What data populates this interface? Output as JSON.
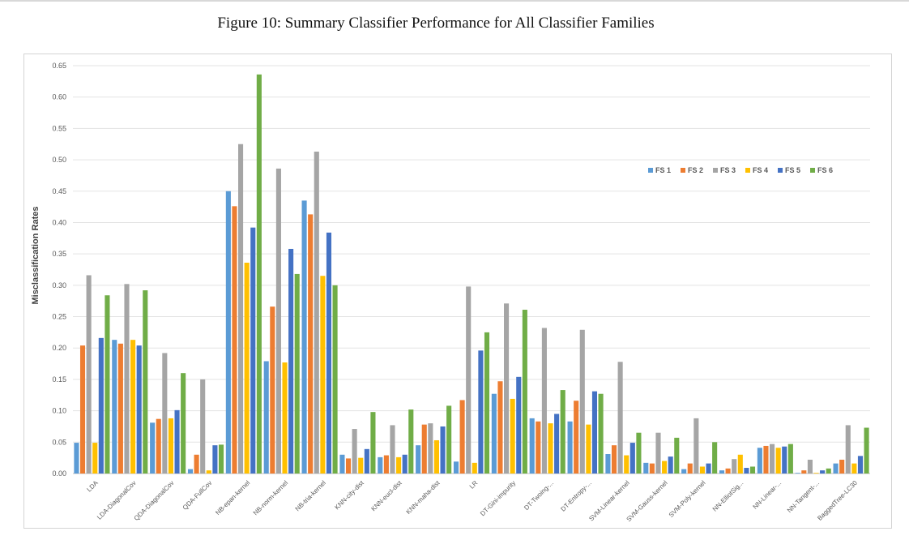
{
  "caption": "Figure 10: Summary Classifier Performance for All Classifier Families",
  "chart_data": {
    "type": "bar",
    "title": "",
    "xlabel": "",
    "ylabel": "Misclassification Rates",
    "ylim": [
      0,
      0.65
    ],
    "yticks": [
      "0.00",
      "0.05",
      "0.10",
      "0.15",
      "0.20",
      "0.25",
      "0.30",
      "0.35",
      "0.40",
      "0.45",
      "0.50",
      "0.55",
      "0.60",
      "0.65"
    ],
    "grid": true,
    "legend_position": "right",
    "categories": [
      "LDA",
      "LDA-DiagonalCov",
      "QDA-DiagonalCov",
      "QDA-FullCov",
      "NB-epan-kernel",
      "NB-norm-kernel",
      "NB-tria-kernel",
      "KNN-city-dist",
      "KNN-eucl-dist",
      "KNN-maha-dist",
      "LR",
      "DT-Gini-impurity",
      "DT-Twoing-...",
      "DT-Entropy-...",
      "SVM-Linear-kernel",
      "SVM-Gauss-kernel",
      "SVM-Poly-kernel",
      "NN-ElliotSig...",
      "NN-Linear-...",
      "NN-Tangent-...",
      "BaggedTree-LC30"
    ],
    "series": [
      {
        "name": "FS 1",
        "color": "#5b9bd5",
        "values": [
          0.049,
          0.213,
          0.081,
          0.007,
          0.45,
          0.179,
          0.435,
          0.03,
          0.026,
          0.045,
          0.019,
          0.127,
          0.088,
          0.083,
          0.031,
          0.017,
          0.007,
          0.005,
          0.041,
          0.001,
          0.016
        ]
      },
      {
        "name": "FS 2",
        "color": "#ed7d31",
        "values": [
          0.204,
          0.207,
          0.087,
          0.03,
          0.426,
          0.266,
          0.413,
          0.024,
          0.029,
          0.078,
          0.117,
          0.147,
          0.083,
          0.116,
          0.045,
          0.016,
          0.016,
          0.008,
          0.044,
          0.005,
          0.022
        ]
      },
      {
        "name": "FS 3",
        "color": "#a5a5a5",
        "values": [
          0.316,
          0.302,
          0.192,
          0.15,
          0.525,
          0.486,
          0.513,
          0.071,
          0.077,
          0.08,
          0.298,
          0.271,
          0.232,
          0.229,
          0.178,
          0.065,
          0.088,
          0.023,
          0.047,
          0.022,
          0.077
        ]
      },
      {
        "name": "FS 4",
        "color": "#ffc000",
        "values": [
          0.049,
          0.213,
          0.088,
          0.005,
          0.336,
          0.177,
          0.315,
          0.025,
          0.026,
          0.053,
          0.017,
          0.119,
          0.08,
          0.078,
          0.029,
          0.02,
          0.011,
          0.03,
          0.041,
          0.001,
          0.016
        ]
      },
      {
        "name": "FS 5",
        "color": "#4472c4",
        "values": [
          0.216,
          0.204,
          0.101,
          0.045,
          0.392,
          0.358,
          0.384,
          0.039,
          0.03,
          0.075,
          0.196,
          0.154,
          0.095,
          0.131,
          0.049,
          0.027,
          0.016,
          0.009,
          0.043,
          0.005,
          0.028
        ]
      },
      {
        "name": "FS 6",
        "color": "#70ad47",
        "values": [
          0.284,
          0.292,
          0.16,
          0.046,
          0.636,
          0.318,
          0.3,
          0.098,
          0.102,
          0.108,
          0.225,
          0.261,
          0.133,
          0.127,
          0.065,
          0.057,
          0.05,
          0.011,
          0.047,
          0.008,
          0.073
        ]
      }
    ]
  }
}
